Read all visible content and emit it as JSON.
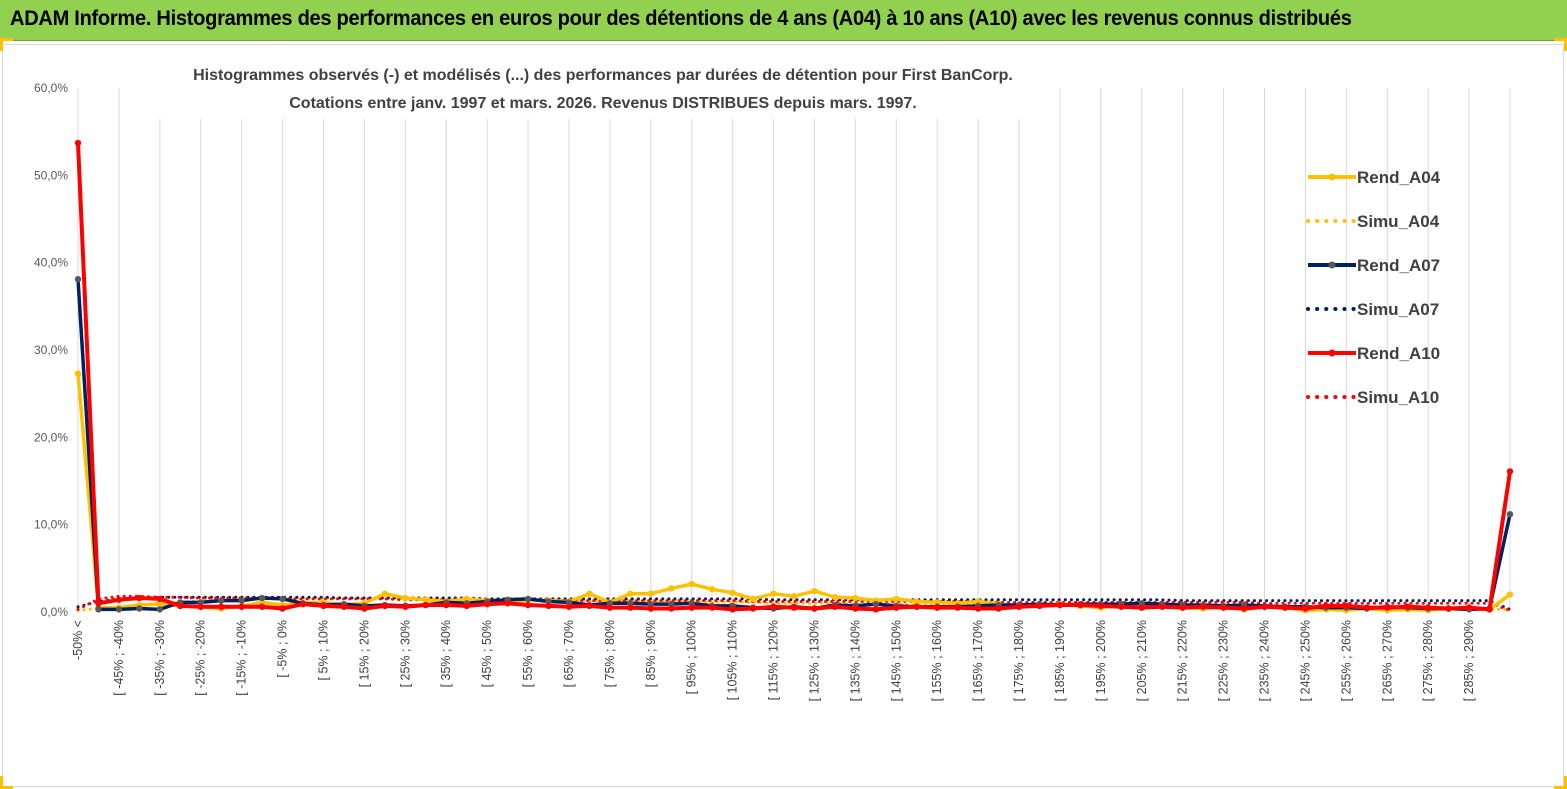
{
  "banner": {
    "title": "ADAM Informe. Histogrammes des performances en euros pour des détentions de 4 ans (A04) à 10 ans (A10) avec les revenus connus distribués"
  },
  "colors": {
    "banner_bg": "#92d050",
    "rend_a04": "#ffc000",
    "rend_a07": "#002060",
    "rend_a10": "#ff0000",
    "marker_a07": "#595959",
    "gridline": "#d9d9d9",
    "frame_corner": "#ffc000"
  },
  "chart_data": {
    "type": "line",
    "title_line1": "Histogrammes observés (-) et modélisés (...) des performances par durées de détention pour First BanCorp.",
    "title_line2": "Cotations entre janv. 1997 et mars. 2026. Revenus DISTRIBUES depuis mars. 1997.",
    "ylim": [
      0,
      60
    ],
    "y_ticks": [
      "0,0%",
      "10,0%",
      "20,0%",
      "30,0%",
      "40,0%",
      "50,0%",
      "60,0%"
    ],
    "grid": true,
    "legend_position": "right",
    "x_labels": [
      "-50% <",
      "[ -45% ; -40%",
      "[ -35% ; -30%",
      "[ -25% ; -20%",
      "[ -15% ; -10%",
      "[ -5% ; 0%",
      "[ 5% ; 10%",
      "[ 15% ; 20%",
      "[ 25% ; 30%",
      "[ 35% ; 40%",
      "[ 45% ; 50%",
      "[ 55% ; 60%",
      "[ 65% ; 70%",
      "[ 75% ; 80%",
      "[ 85% ; 90%",
      "[ 95% ; 100%",
      "[ 105% ; 110%",
      "[ 115% ; 120%",
      "[ 125% ; 130%",
      "[ 135% ; 140%",
      "[ 145% ; 150%",
      "[ 155% ; 160%",
      "[ 165% ; 170%",
      "[ 175% ; 180%",
      "[ 185% ; 190%",
      "[ 195% ; 200%",
      "[ 205% ; 210%",
      "[ 215% ; 220%",
      "[ 225% ; 230%",
      "[ 235% ; 240%",
      "[ 245% ; 250%",
      "[ 255% ; 260%",
      "[ 265% ; 270%",
      "[ 275% ; 280%",
      "[ 285% ; 290%"
    ],
    "num_categories": 71,
    "series": [
      {
        "name": "Rend_A04",
        "style": "solid",
        "color": "#ffc000",
        "values": [
          27.3,
          0.5,
          0.5,
          0.8,
          0.9,
          0.7,
          0.6,
          0.4,
          0.7,
          1.1,
          0.8,
          1.0,
          1.1,
          0.8,
          1.0,
          2.1,
          1.6,
          1.4,
          1.2,
          1.5,
          1.3,
          1.0,
          1.4,
          1.3,
          1.2,
          2.1,
          1.1,
          2.1,
          2.1,
          2.7,
          3.2,
          2.6,
          2.2,
          1.5,
          2.1,
          1.8,
          2.4,
          1.7,
          1.6,
          1.3,
          1.5,
          1.2,
          1.1,
          1.0,
          1.2,
          0.9,
          0.6,
          0.8,
          0.9,
          0.7,
          0.5,
          0.8,
          0.6,
          0.7,
          0.5,
          0.4,
          0.6,
          0.3,
          0.6,
          0.5,
          0.2,
          0.3,
          0.2,
          0.4,
          0.2,
          0.3,
          0.2,
          0.4,
          0.3,
          0.3,
          2.0
        ]
      },
      {
        "name": "Simu_A04",
        "style": "dotted",
        "color": "#ffc000",
        "values": [
          0.2,
          0.4,
          0.6,
          0.8,
          1.0,
          1.1,
          1.3,
          1.4,
          1.5,
          1.5,
          1.6,
          1.6,
          1.6,
          1.6,
          1.6,
          1.6,
          1.6,
          1.6,
          1.5,
          1.5,
          1.5,
          1.5,
          1.4,
          1.4,
          1.4,
          1.3,
          1.3,
          1.3,
          1.2,
          1.2,
          1.2,
          1.1,
          1.1,
          1.1,
          1.0,
          1.0,
          1.0,
          1.0,
          0.9,
          0.9,
          0.9,
          0.8,
          0.8,
          0.8,
          0.8,
          0.7,
          0.7,
          0.7,
          0.7,
          0.7,
          0.6,
          0.6,
          0.6,
          0.6,
          0.5,
          0.5,
          0.5,
          0.5,
          0.5,
          0.4,
          0.4,
          0.4,
          0.4,
          0.4,
          0.4,
          0.3,
          0.3,
          0.3,
          0.3,
          0.3,
          0.3
        ]
      },
      {
        "name": "Rend_A07",
        "style": "solid",
        "color": "#002060",
        "values": [
          38.1,
          0.3,
          0.3,
          0.4,
          0.3,
          1.1,
          1.1,
          1.3,
          1.3,
          1.6,
          1.5,
          1.0,
          0.8,
          0.9,
          0.7,
          0.8,
          0.7,
          0.8,
          1.1,
          1.0,
          1.2,
          1.4,
          1.5,
          1.2,
          1.1,
          0.8,
          1.0,
          1.0,
          0.9,
          0.9,
          1.0,
          0.7,
          0.7,
          0.5,
          0.4,
          0.6,
          0.4,
          0.8,
          0.7,
          0.9,
          0.7,
          0.6,
          0.6,
          0.6,
          0.7,
          0.8,
          0.8,
          0.9,
          0.8,
          0.9,
          0.9,
          0.9,
          1.0,
          0.9,
          0.8,
          0.8,
          0.7,
          0.8,
          0.7,
          0.6,
          0.6,
          0.5,
          0.5,
          0.4,
          0.6,
          0.5,
          0.4,
          0.4,
          0.3,
          0.4,
          11.2
        ]
      },
      {
        "name": "Simu_A07",
        "style": "dotted",
        "color": "#002060",
        "values": [
          0.6,
          1.2,
          1.5,
          1.6,
          1.7,
          1.7,
          1.7,
          1.7,
          1.7,
          1.7,
          1.7,
          1.7,
          1.7,
          1.6,
          1.6,
          1.6,
          1.6,
          1.6,
          1.6,
          1.6,
          1.5,
          1.5,
          1.5,
          1.5,
          1.5,
          1.5,
          1.5,
          1.5,
          1.5,
          1.5,
          1.5,
          1.5,
          1.5,
          1.5,
          1.4,
          1.4,
          1.4,
          1.4,
          1.4,
          1.4,
          1.4,
          1.4,
          1.4,
          1.4,
          1.4,
          1.4,
          1.4,
          1.4,
          1.4,
          1.4,
          1.4,
          1.4,
          1.4,
          1.4,
          1.3,
          1.3,
          1.3,
          1.3,
          1.3,
          1.3,
          1.3,
          1.3,
          1.3,
          1.3,
          1.3,
          1.3,
          1.3,
          1.3,
          1.3,
          1.3,
          0.3
        ]
      },
      {
        "name": "Rend_A10",
        "style": "solid",
        "color": "#ff0000",
        "values": [
          53.7,
          1.0,
          1.4,
          1.6,
          1.5,
          0.7,
          0.6,
          0.6,
          0.6,
          0.6,
          0.4,
          0.9,
          0.7,
          0.6,
          0.4,
          0.7,
          0.6,
          0.8,
          0.8,
          0.7,
          0.9,
          1.0,
          0.8,
          0.7,
          0.6,
          0.7,
          0.5,
          0.5,
          0.4,
          0.4,
          0.5,
          0.5,
          0.3,
          0.4,
          0.6,
          0.5,
          0.4,
          0.6,
          0.4,
          0.3,
          0.5,
          0.6,
          0.5,
          0.5,
          0.4,
          0.4,
          0.6,
          0.7,
          0.8,
          0.8,
          0.7,
          0.6,
          0.5,
          0.6,
          0.5,
          0.6,
          0.5,
          0.4,
          0.6,
          0.5,
          0.4,
          0.7,
          0.7,
          0.5,
          0.5,
          0.6,
          0.5,
          0.4,
          0.5,
          0.3,
          16.1
        ]
      },
      {
        "name": "Simu_A10",
        "style": "dotted",
        "color": "#ff0000",
        "values": [
          0.3,
          1.5,
          1.8,
          1.8,
          1.7,
          1.7,
          1.6,
          1.6,
          1.6,
          1.6,
          1.5,
          1.5,
          1.5,
          1.5,
          1.5,
          1.5,
          1.4,
          1.4,
          1.4,
          1.4,
          1.4,
          1.4,
          1.4,
          1.4,
          1.3,
          1.3,
          1.3,
          1.3,
          1.3,
          1.3,
          1.3,
          1.3,
          1.3,
          1.2,
          1.2,
          1.2,
          1.2,
          1.2,
          1.2,
          1.2,
          1.2,
          1.2,
          1.2,
          1.2,
          1.2,
          1.1,
          1.1,
          1.1,
          1.1,
          1.1,
          1.1,
          1.1,
          1.1,
          1.1,
          1.1,
          1.1,
          1.1,
          1.1,
          1.0,
          1.0,
          1.0,
          1.0,
          1.0,
          1.0,
          1.0,
          1.0,
          1.0,
          1.0,
          1.0,
          1.0,
          0.2
        ]
      }
    ]
  }
}
